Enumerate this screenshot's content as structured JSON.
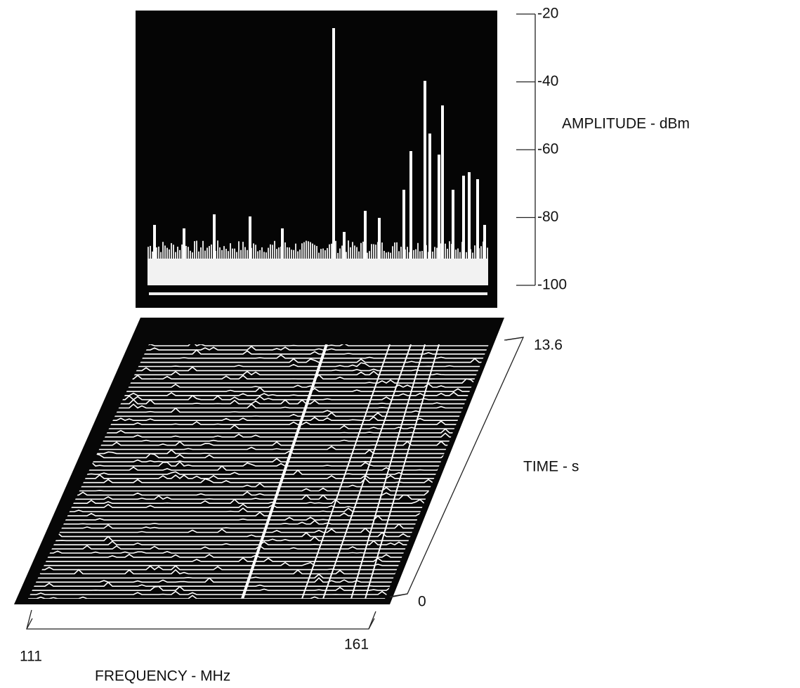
{
  "amplitude_axis": {
    "label": "AMPLITUDE - dBm",
    "ticks": [
      -20,
      -40,
      -60,
      -80,
      -100
    ]
  },
  "time_axis": {
    "label": "TIME - s",
    "ticks": [
      0,
      13.6
    ]
  },
  "frequency_axis": {
    "label": "FREQUENCY - MHz",
    "ticks": [
      111,
      161
    ]
  }
}
